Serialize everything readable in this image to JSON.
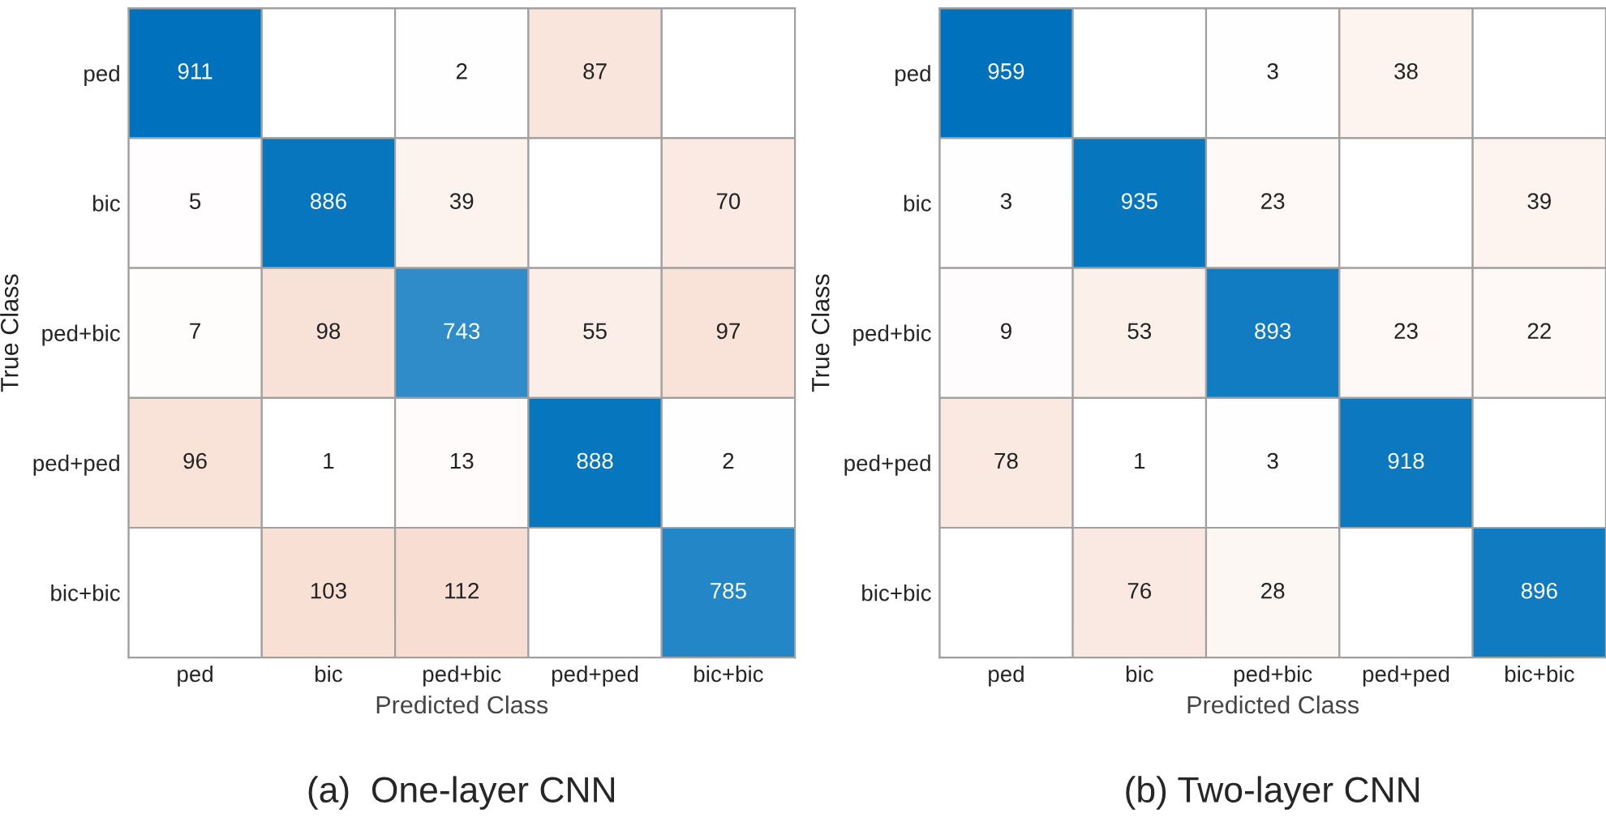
{
  "chart_data": [
    {
      "type": "heatmap",
      "title": "(a)  One-layer CNN",
      "xlabel": "Predicted Class",
      "ylabel": "True Class",
      "data_labels": true,
      "categories": [
        "ped",
        "bic",
        "ped+bic",
        "ped+ped",
        "bic+bic"
      ],
      "y_categories": [
        "ped",
        "bic",
        "ped+bic",
        "ped+ped",
        "bic+bic"
      ],
      "cells": [
        [
          911,
          null,
          2,
          87,
          null
        ],
        [
          5,
          886,
          39,
          null,
          70
        ],
        [
          7,
          98,
          743,
          55,
          97
        ],
        [
          96,
          1,
          13,
          888,
          2
        ],
        [
          null,
          103,
          112,
          null,
          785
        ]
      ]
    },
    {
      "type": "heatmap",
      "title": "(b) Two-layer CNN",
      "xlabel": "Predicted Class",
      "ylabel": "True Class",
      "data_labels": true,
      "categories": [
        "ped",
        "bic",
        "ped+bic",
        "ped+ped",
        "bic+bic"
      ],
      "y_categories": [
        "ped",
        "bic",
        "ped+bic",
        "ped+ped",
        "bic+bic"
      ],
      "cells": [
        [
          959,
          null,
          3,
          38,
          null
        ],
        [
          3,
          935,
          23,
          null,
          39
        ],
        [
          9,
          53,
          893,
          23,
          22
        ],
        [
          78,
          1,
          3,
          918,
          null
        ],
        [
          null,
          76,
          28,
          null,
          896
        ]
      ]
    }
  ]
}
